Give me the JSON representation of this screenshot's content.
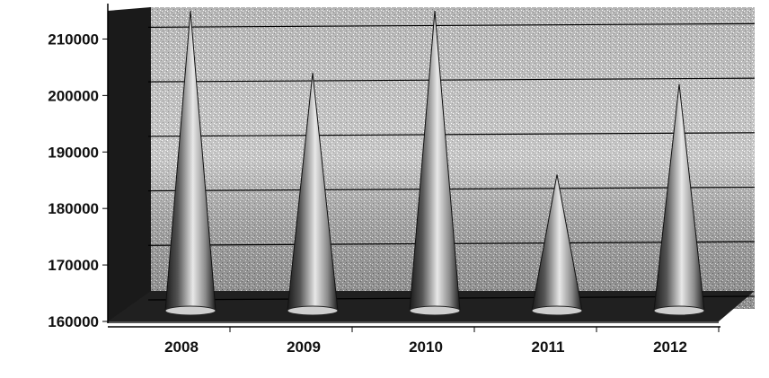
{
  "chart_data": {
    "type": "bar",
    "style": "3d-cone",
    "categories": [
      "2008",
      "2009",
      "2010",
      "2011",
      "2012"
    ],
    "values": [
      215000,
      204000,
      215000,
      186000,
      202000
    ],
    "ylim": [
      160000,
      215000
    ],
    "yticks": [
      160000,
      170000,
      180000,
      190000,
      200000,
      210000
    ],
    "ytick_labels": [
      "160000",
      "170000",
      "180000",
      "190000",
      "200000",
      "210000"
    ],
    "title": "",
    "xlabel": "",
    "ylabel": "",
    "grid": true,
    "legend": "none",
    "colors": {
      "cone_dark": "#1a1a1a",
      "cone_light": "#e8e8e8",
      "wall": "#9a9a9a",
      "wall_light": "#d0d0d0",
      "floor": "#202020",
      "gridline": "#000000"
    }
  }
}
